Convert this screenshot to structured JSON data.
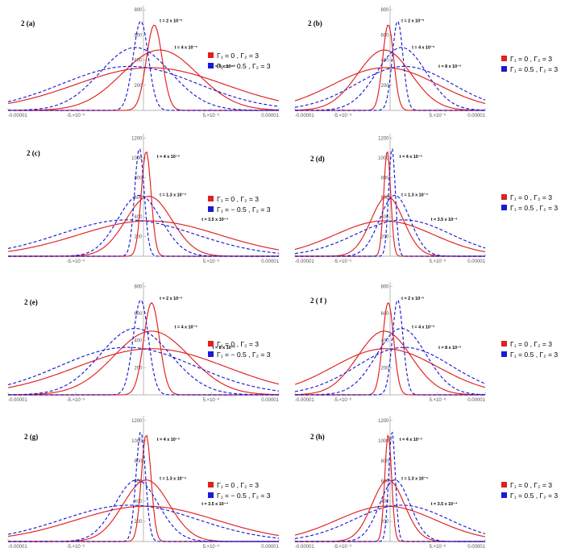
{
  "chart_data": [
    {
      "type": "line",
      "panel": "(a)",
      "number": "2",
      "xlim": [
        -1e-05,
        1e-05
      ],
      "ylim": [
        0,
        820
      ],
      "x_ticks": [
        {
          "value": -1e-05,
          "label": "-0.00001"
        },
        {
          "value": -5e-06,
          "label": "-5.×10⁻⁶"
        },
        {
          "value": 5e-06,
          "label": "5.×10⁻⁶"
        },
        {
          "value": 1e-05,
          "label": "0.00001"
        }
      ],
      "y_ticks": [
        {
          "value": 200,
          "label": "200"
        },
        {
          "value": 400,
          "label": "400"
        },
        {
          "value": 600,
          "label": "600"
        },
        {
          "value": 800,
          "label": "800"
        }
      ],
      "series": [
        {
          "name": "Γ₁ = 0 ,     Γ₂ = 3",
          "color": "#e02020",
          "dash": false,
          "curves": [
            {
              "center": 8e-07,
              "sigma": 5.8e-07,
              "peak": 680
            },
            {
              "center": 1.2e-06,
              "sigma": 2.8e-06,
              "peak": 480
            },
            {
              "center": 5e-07,
              "sigma": 5.5e-06,
              "peak": 340
            }
          ]
        },
        {
          "name": "Γ₁ = − 0.5 , Γ₂ = 3",
          "color": "#1a1ad6",
          "dash": true,
          "curves": [
            {
              "center": -2e-07,
              "sigma": 5.6e-07,
              "peak": 710
            },
            {
              "center": -6e-07,
              "sigma": 2.6e-06,
              "peak": 500
            },
            {
              "center": -1e-06,
              "sigma": 5e-06,
              "peak": 350
            }
          ]
        }
      ],
      "annotations": [
        {
          "text": "t = 2 x 10⁻⁵",
          "x": 1.2e-06,
          "y": 700
        },
        {
          "text": "t = 4 x 10⁻⁵",
          "x": 2.3e-06,
          "y": 490
        },
        {
          "text": "t = 8 x 10⁻⁵",
          "x": 5.1e-06,
          "y": 340
        }
      ]
    },
    {
      "type": "line",
      "panel": "(b)",
      "number": "2",
      "xlim": [
        -1e-05,
        1e-05
      ],
      "ylim": [
        0,
        820
      ],
      "x_ticks": [
        {
          "value": -1e-05,
          "label": "-0.00001"
        },
        {
          "value": -5e-06,
          "label": "-5.×10⁻⁶"
        },
        {
          "value": 5e-06,
          "label": "5.×10⁻⁶"
        },
        {
          "value": 1e-05,
          "label": "0.00001"
        }
      ],
      "y_ticks": [
        {
          "value": 200,
          "label": "200"
        },
        {
          "value": 400,
          "label": "400"
        },
        {
          "value": 600,
          "label": "600"
        },
        {
          "value": 800,
          "label": "800"
        }
      ],
      "series": [
        {
          "name": "Γ₁ = 0 , Γ₂ = 3",
          "color": "#e02020",
          "dash": false,
          "curves": [
            {
              "center": -2e-07,
              "sigma": 5.8e-07,
              "peak": 680
            },
            {
              "center": -6e-07,
              "sigma": 2.8e-06,
              "peak": 480
            },
            {
              "center": -5e-07,
              "sigma": 5.5e-06,
              "peak": 340
            }
          ]
        },
        {
          "name": "Γ₁ = 0.5 , Γ₂ = 3",
          "color": "#1a1ad6",
          "dash": true,
          "curves": [
            {
              "center": 8e-07,
              "sigma": 5.6e-07,
              "peak": 710
            },
            {
              "center": 1.2e-06,
              "sigma": 2.6e-06,
              "peak": 500
            },
            {
              "center": 1.5e-06,
              "sigma": 5e-06,
              "peak": 350
            }
          ]
        }
      ],
      "annotations": [
        {
          "text": "t = 2 x 10⁻⁵",
          "x": 1.2e-06,
          "y": 700
        },
        {
          "text": "t = 4 x 10⁻⁵",
          "x": 2.3e-06,
          "y": 490
        },
        {
          "text": "t = 8 x 10⁻⁵",
          "x": 5.1e-06,
          "y": 340
        }
      ]
    },
    {
      "type": "line",
      "panel": "(c)",
      "number": "2",
      "xlim": [
        -1e-05,
        1e-05
      ],
      "ylim": [
        0,
        1230
      ],
      "x_ticks": [
        {
          "value": -5e-06,
          "label": "-5.×10⁻⁶"
        },
        {
          "value": 5e-06,
          "label": "5.×10⁻⁶"
        },
        {
          "value": 1e-05,
          "label": "0.00001"
        }
      ],
      "y_ticks": [
        {
          "value": 200,
          "label": "200"
        },
        {
          "value": 400,
          "label": "400"
        },
        {
          "value": 600,
          "label": "600"
        },
        {
          "value": 800,
          "label": "800"
        },
        {
          "value": 1000,
          "label": "1000"
        },
        {
          "value": 1200,
          "label": "1200"
        }
      ],
      "series": [
        {
          "name": "Γ₁ = 0 ,     Γ₂ = 3",
          "color": "#e02020",
          "dash": false,
          "curves": [
            {
              "center": 2e-07,
              "sigma": 3.6e-07,
              "peak": 1070
            },
            {
              "center": 4e-07,
              "sigma": 1.7e-06,
              "peak": 610
            },
            {
              "center": 4e-07,
              "sigma": 5.2e-06,
              "peak": 360
            }
          ]
        },
        {
          "name": "Γ₁ = − 0.5 , Γ₂ = 3",
          "color": "#1a1ad6",
          "dash": true,
          "curves": [
            {
              "center": -3e-07,
              "sigma": 3.5e-07,
              "peak": 1100
            },
            {
              "center": -3e-07,
              "sigma": 1.6e-06,
              "peak": 620
            },
            {
              "center": -1.2e-06,
              "sigma": 5e-06,
              "peak": 370
            }
          ]
        }
      ],
      "annotations": [
        {
          "text": "t = 4 x 10⁻⁵",
          "x": 1e-06,
          "y": 1000
        },
        {
          "text": "t = 1.3 x 10⁻⁴",
          "x": 1.2e-06,
          "y": 610
        },
        {
          "text": "t = 3.5 x 10⁻⁴",
          "x": 4.3e-06,
          "y": 360
        }
      ]
    },
    {
      "type": "line",
      "panel": "(d)",
      "number": "2",
      "xlim": [
        -1e-05,
        1e-05
      ],
      "ylim": [
        0,
        1230
      ],
      "x_ticks": [
        {
          "value": -1e-05,
          "label": "-0.00001"
        },
        {
          "value": -5e-06,
          "label": "-5.×10⁻⁶"
        },
        {
          "value": 5e-06,
          "label": "5.×10⁻⁶"
        },
        {
          "value": 1e-05,
          "label": "0.00001"
        }
      ],
      "y_ticks": [
        {
          "value": 200,
          "label": "200"
        },
        {
          "value": 400,
          "label": "400"
        },
        {
          "value": 600,
          "label": "600"
        },
        {
          "value": 800,
          "label": "800"
        },
        {
          "value": 1000,
          "label": "1000"
        },
        {
          "value": 1200,
          "label": "1200"
        }
      ],
      "series": [
        {
          "name": "Γ₁ = 0 , Γ₂ = 3",
          "color": "#e02020",
          "dash": false,
          "curves": [
            {
              "center": -3e-07,
              "sigma": 3.6e-07,
              "peak": 1070
            },
            {
              "center": -3e-07,
              "sigma": 1.7e-06,
              "peak": 610
            },
            {
              "center": -6e-07,
              "sigma": 5.2e-06,
              "peak": 360
            }
          ]
        },
        {
          "name": "Γ₁ = 0.5 , Γ₂ = 3",
          "color": "#1a1ad6",
          "dash": true,
          "curves": [
            {
              "center": 2e-07,
              "sigma": 3.5e-07,
              "peak": 1100
            },
            {
              "center": 5e-07,
              "sigma": 1.6e-06,
              "peak": 620
            },
            {
              "center": 1.4e-06,
              "sigma": 5e-06,
              "peak": 370
            }
          ]
        }
      ],
      "annotations": [
        {
          "text": "t = 4 x 10⁻⁵",
          "x": 1e-06,
          "y": 1000
        },
        {
          "text": "t = 1.3 x 10⁻⁴",
          "x": 1.2e-06,
          "y": 610
        },
        {
          "text": "t = 3.5 x 10⁻⁴",
          "x": 4.3e-06,
          "y": 360
        }
      ]
    },
    {
      "type": "line",
      "panel": "(e)",
      "number": "2",
      "xlim": [
        -1e-05,
        1e-05
      ],
      "ylim": [
        0,
        820
      ],
      "x_ticks": [
        {
          "value": -1e-05,
          "label": "-0.00001"
        },
        {
          "value": -5e-06,
          "label": "-5.×10⁻⁶"
        },
        {
          "value": 5e-06,
          "label": "5.×10⁻⁶"
        },
        {
          "value": 1e-05,
          "label": "0.00001"
        }
      ],
      "y_ticks": [
        {
          "value": 200,
          "label": "200"
        },
        {
          "value": 400,
          "label": "400"
        },
        {
          "value": 600,
          "label": "600"
        },
        {
          "value": 800,
          "label": "800"
        }
      ],
      "series": [
        {
          "name": "Γ₁ = 0 ,     Γ₂ = 3",
          "color": "#e02020",
          "dash": false,
          "curves": [
            {
              "center": 6e-07,
              "sigma": 5.8e-07,
              "peak": 680
            },
            {
              "center": 6e-07,
              "sigma": 2.8e-06,
              "peak": 470
            },
            {
              "center": 6e-07,
              "sigma": 5.5e-06,
              "peak": 340
            }
          ]
        },
        {
          "name": "Γ₁ = − 0.5 , Γ₂ = 3",
          "color": "#1a1ad6",
          "dash": true,
          "curves": [
            {
              "center": -2e-07,
              "sigma": 5.6e-07,
              "peak": 700
            },
            {
              "center": -6e-07,
              "sigma": 2.6e-06,
              "peak": 490
            },
            {
              "center": -1.2e-06,
              "sigma": 5e-06,
              "peak": 350
            }
          ]
        }
      ],
      "annotations": [
        {
          "text": "t = 2 x 10⁻⁵",
          "x": 1.2e-06,
          "y": 700
        },
        {
          "text": "t = 4 x 10⁻⁵",
          "x": 2.3e-06,
          "y": 490
        },
        {
          "text": "t = 8 x 10⁻⁵",
          "x": 5.1e-06,
          "y": 340
        }
      ]
    },
    {
      "type": "line",
      "panel": "( f )",
      "number": "2",
      "xlim": [
        -1e-05,
        1e-05
      ],
      "ylim": [
        0,
        820
      ],
      "x_ticks": [
        {
          "value": -1e-05,
          "label": "-0.00001"
        },
        {
          "value": -5e-06,
          "label": "-5.×10⁻⁶"
        },
        {
          "value": 5e-06,
          "label": "5.×10⁻⁶"
        },
        {
          "value": 1e-05,
          "label": "0.00001"
        }
      ],
      "y_ticks": [
        {
          "value": 200,
          "label": "200"
        },
        {
          "value": 400,
          "label": "400"
        },
        {
          "value": 600,
          "label": "600"
        },
        {
          "value": 800,
          "label": "800"
        }
      ],
      "series": [
        {
          "name": "Γ₁ = 0 , Γ₂ = 3",
          "color": "#e02020",
          "dash": false,
          "curves": [
            {
              "center": -2e-07,
              "sigma": 5.8e-07,
              "peak": 680
            },
            {
              "center": -6e-07,
              "sigma": 2.8e-06,
              "peak": 470
            },
            {
              "center": -5e-07,
              "sigma": 5.5e-06,
              "peak": 340
            }
          ]
        },
        {
          "name": "Γ₁ = 0.5 , Γ₂ = 3",
          "color": "#1a1ad6",
          "dash": true,
          "curves": [
            {
              "center": 8e-07,
              "sigma": 5.6e-07,
              "peak": 700
            },
            {
              "center": 1.2e-06,
              "sigma": 2.6e-06,
              "peak": 490
            },
            {
              "center": 1.5e-06,
              "sigma": 5e-06,
              "peak": 350
            }
          ]
        }
      ],
      "annotations": [
        {
          "text": "t = 2 x 10⁻⁵",
          "x": 1.2e-06,
          "y": 700
        },
        {
          "text": "t = 4 x 10⁻⁵",
          "x": 2.3e-06,
          "y": 490
        },
        {
          "text": "t = 8 x 10⁻⁵",
          "x": 5.1e-06,
          "y": 340
        }
      ]
    },
    {
      "type": "line",
      "panel": "(g)",
      "number": "2",
      "xlim": [
        -1e-05,
        1e-05
      ],
      "ylim": [
        0,
        1230
      ],
      "x_ticks": [
        {
          "value": -1e-05,
          "label": "-0.00001"
        },
        {
          "value": -5e-06,
          "label": "-5.×10⁻⁶"
        },
        {
          "value": 5e-06,
          "label": "5.×10⁻⁶"
        },
        {
          "value": 1e-05,
          "label": "0.00001"
        }
      ],
      "y_ticks": [
        {
          "value": 200,
          "label": "200"
        },
        {
          "value": 400,
          "label": "400"
        },
        {
          "value": 600,
          "label": "600"
        },
        {
          "value": 800,
          "label": "800"
        },
        {
          "value": 1000,
          "label": "1000"
        },
        {
          "value": 1200,
          "label": "1200"
        }
      ],
      "series": [
        {
          "name": "Γ₁ = 0 ,         Γ₂ = 3",
          "color": "#e02020",
          "dash": false,
          "curves": [
            {
              "center": 2e-07,
              "sigma": 3.6e-07,
              "peak": 1060
            },
            {
              "center": 2e-07,
              "sigma": 1.7e-06,
              "peak": 610
            },
            {
              "center": 2e-07,
              "sigma": 5.2e-06,
              "peak": 350
            }
          ]
        },
        {
          "name": "Γ₁ = − 0.5 , Γ₂ = 3",
          "color": "#1a1ad6",
          "dash": true,
          "curves": [
            {
              "center": -2e-07,
              "sigma": 3.5e-07,
              "peak": 1090
            },
            {
              "center": -5e-07,
              "sigma": 1.6e-06,
              "peak": 610
            },
            {
              "center": -1e-06,
              "sigma": 5e-06,
              "peak": 360
            }
          ]
        }
      ],
      "annotations": [
        {
          "text": "t = 4 x 10⁻⁵",
          "x": 1e-06,
          "y": 1000
        },
        {
          "text": "t = 1.3 x 10⁻⁴",
          "x": 1.2e-06,
          "y": 610
        },
        {
          "text": "t = 3.5 x 10⁻⁴",
          "x": 4.3e-06,
          "y": 360
        }
      ]
    },
    {
      "type": "line",
      "panel": "(h)",
      "number": "2",
      "xlim": [
        -1e-05,
        1e-05
      ],
      "ylim": [
        0,
        1230
      ],
      "x_ticks": [
        {
          "value": -1e-05,
          "label": "-0.00001"
        },
        {
          "value": -5e-06,
          "label": "-5.×10⁻⁶"
        },
        {
          "value": 5e-06,
          "label": "5.×10⁻⁶"
        },
        {
          "value": 1e-05,
          "label": "0.00001"
        }
      ],
      "y_ticks": [
        {
          "value": 200,
          "label": "200"
        },
        {
          "value": 400,
          "label": "400"
        },
        {
          "value": 600,
          "label": "600"
        },
        {
          "value": 800,
          "label": "800"
        },
        {
          "value": 1000,
          "label": "1000"
        },
        {
          "value": 1200,
          "label": "1200"
        }
      ],
      "series": [
        {
          "name": "Γ₁ = 0 , Γ₂ = 3",
          "color": "#e02020",
          "dash": false,
          "curves": [
            {
              "center": -2e-07,
              "sigma": 3.6e-07,
              "peak": 1060
            },
            {
              "center": -2e-07,
              "sigma": 1.7e-06,
              "peak": 610
            },
            {
              "center": -4e-07,
              "sigma": 5.2e-06,
              "peak": 350
            }
          ]
        },
        {
          "name": "Γ₁ = 0.5 , Γ₂ = 3",
          "color": "#1a1ad6",
          "dash": true,
          "curves": [
            {
              "center": 2e-07,
              "sigma": 3.5e-07,
              "peak": 1090
            },
            {
              "center": 5e-07,
              "sigma": 1.6e-06,
              "peak": 610
            },
            {
              "center": 1.2e-06,
              "sigma": 5e-06,
              "peak": 360
            }
          ]
        }
      ],
      "annotations": [
        {
          "text": "t = 4 x 10⁻⁵",
          "x": 1e-06,
          "y": 1000
        },
        {
          "text": "t = 1.3 x 10⁻⁴",
          "x": 1.2e-06,
          "y": 610
        },
        {
          "text": "t = 3.5 x 10⁻⁴",
          "x": 4.3e-06,
          "y": 360
        }
      ]
    }
  ]
}
